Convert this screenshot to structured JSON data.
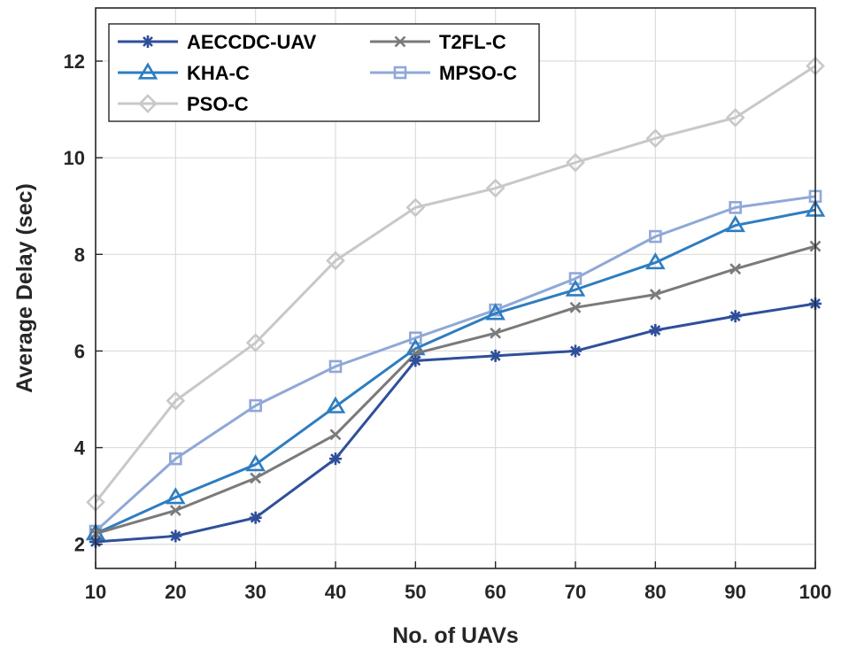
{
  "chart_data": {
    "type": "line",
    "title": "",
    "xlabel": "No. of UAVs",
    "ylabel": "Average Delay (sec)",
    "x": [
      10,
      20,
      30,
      40,
      50,
      60,
      70,
      80,
      90,
      100
    ],
    "xlim": [
      10,
      100
    ],
    "ylim": [
      1.5,
      13.1
    ],
    "xticks": [
      10,
      20,
      30,
      40,
      50,
      60,
      70,
      80,
      90,
      100
    ],
    "yticks": [
      2,
      4,
      6,
      8,
      10,
      12
    ],
    "grid": true,
    "legend_position": "top-left",
    "series": [
      {
        "name": "AECCDC-UAV",
        "marker": "asterisk",
        "color": "#2f4f9b",
        "values": [
          2.05,
          2.17,
          2.55,
          3.77,
          5.8,
          5.9,
          6.0,
          6.43,
          6.72,
          6.98
        ]
      },
      {
        "name": "T2FL-C",
        "marker": "x",
        "color": "#7a7a7a",
        "values": [
          2.22,
          2.7,
          3.37,
          4.27,
          5.95,
          6.37,
          6.9,
          7.17,
          7.7,
          8.17
        ]
      },
      {
        "name": "KHA-C",
        "marker": "triangle",
        "color": "#2e7dc0",
        "values": [
          2.22,
          2.97,
          3.65,
          4.85,
          6.05,
          6.78,
          7.27,
          7.83,
          8.6,
          8.92
        ]
      },
      {
        "name": "MPSO-C",
        "marker": "square",
        "color": "#8fa8d8",
        "values": [
          2.27,
          3.77,
          4.87,
          5.68,
          6.27,
          6.85,
          7.5,
          8.37,
          8.97,
          9.2
        ]
      },
      {
        "name": "PSO-C",
        "marker": "diamond",
        "color": "#c8c8c8",
        "values": [
          2.87,
          4.97,
          6.17,
          7.87,
          8.97,
          9.37,
          9.9,
          10.4,
          10.83,
          11.9
        ]
      }
    ]
  }
}
